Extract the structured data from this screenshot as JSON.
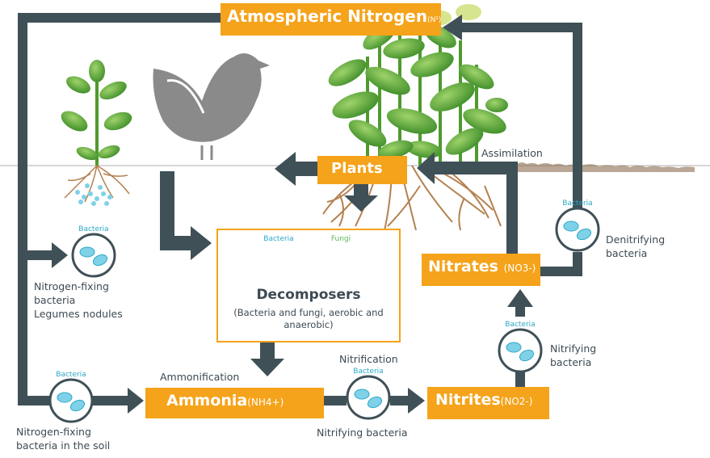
{
  "boxes": {
    "atmospheric": {
      "label": "Atmospheric Nitrogen",
      "sub": "(N²)"
    },
    "plants": {
      "label": "Plants"
    },
    "nitrates": {
      "label": "Nitrates",
      "sub": "(NO3-)"
    },
    "ammonia": {
      "label": "Ammonia",
      "sub": "(NH4+)"
    },
    "nitrites": {
      "label": "Nitrites",
      "sub": "(NO2-)"
    }
  },
  "decomposers": {
    "title": "Decomposers",
    "description": "(Bacteria and fungi, aerobic and anaerobic)",
    "bacteria_caption": "Bacteria",
    "fungi_caption": "Fungi"
  },
  "labels": {
    "assimilation": "Assimilation",
    "denitrifying": "Denitrifying\nbacteria",
    "nitrogen_fixing_legumes": "Nitrogen-fixing\nbacteria\nLegumes nodules",
    "nitrogen_fixing_soil": "Nitrogen-fixing\nbacteria in the soil",
    "ammonification": "Ammonification",
    "nitrification": "Nitrification",
    "nitrifying_bottom": "Nitrifying bacteria",
    "nitrifying_right": "Nitrifying\nbacteria"
  },
  "circle_captions": {
    "bacteria": "Bacteria"
  },
  "colors": {
    "orange": "#f5a31a",
    "arrow": "#3f5057",
    "bacteria_blue": "#2aa8c7",
    "leaf": "#6ab04c",
    "hen": "#8a8a8a",
    "root": "#b48150"
  }
}
